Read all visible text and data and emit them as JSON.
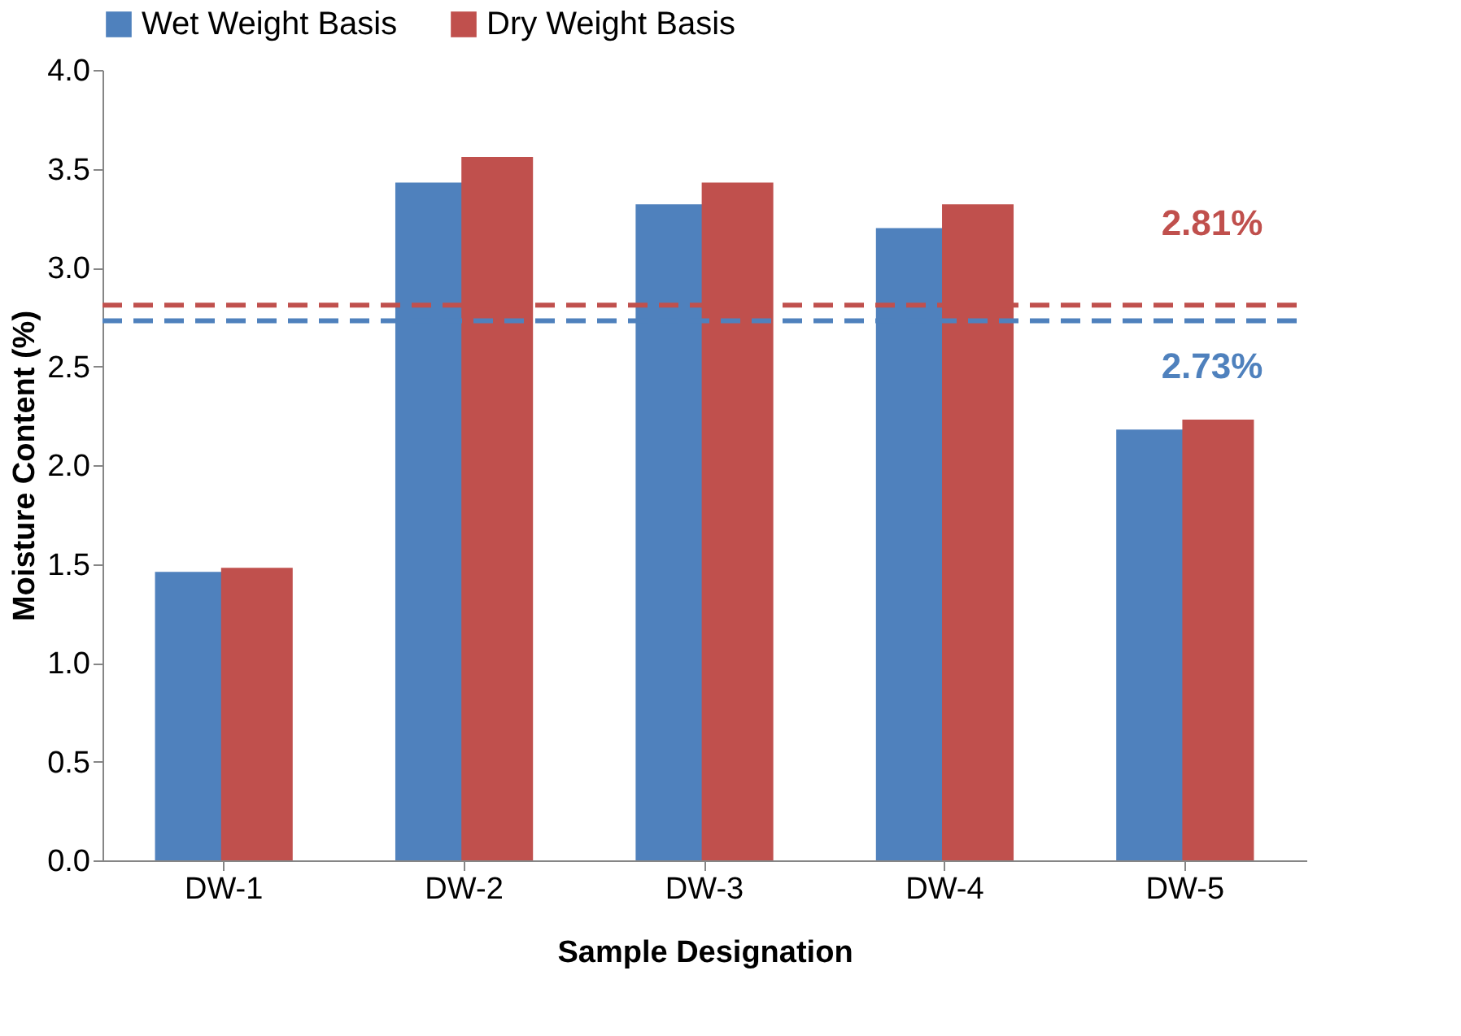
{
  "chart_data": {
    "type": "bar",
    "xlabel": "Sample Designation",
    "ylabel": "Moisture Content (%)",
    "categories": [
      "DW-1",
      "DW-2",
      "DW-3",
      "DW-4",
      "DW-5"
    ],
    "series": [
      {
        "name": "Wet Weight Basis",
        "color": "#4f81bd",
        "values": [
          1.46,
          3.43,
          3.32,
          3.2,
          2.18
        ]
      },
      {
        "name": "Dry Weight Basis",
        "color": "#c0504d",
        "values": [
          1.48,
          3.56,
          3.43,
          3.32,
          2.23
        ]
      }
    ],
    "ylim": [
      0,
      4
    ],
    "yticks": [
      {
        "value": 0,
        "label": "0.0"
      },
      0.5,
      {
        "value": 1,
        "label": "1.0"
      },
      1.5,
      {
        "value": 2,
        "label": "2.0"
      },
      2.5,
      {
        "value": 3,
        "label": "3.0"
      },
      3.5,
      {
        "value": 4,
        "label": "4.0"
      }
    ],
    "ref_lines": [
      {
        "axis": "y",
        "value": 2.81,
        "label": "2.81%",
        "color": "#c0504d",
        "line_style": "dashed"
      },
      {
        "axis": "y",
        "value": 2.73,
        "label": "2.73%",
        "color": "#4f81bd",
        "line_style": "dashed"
      }
    ],
    "grid": false,
    "legend": "top"
  }
}
